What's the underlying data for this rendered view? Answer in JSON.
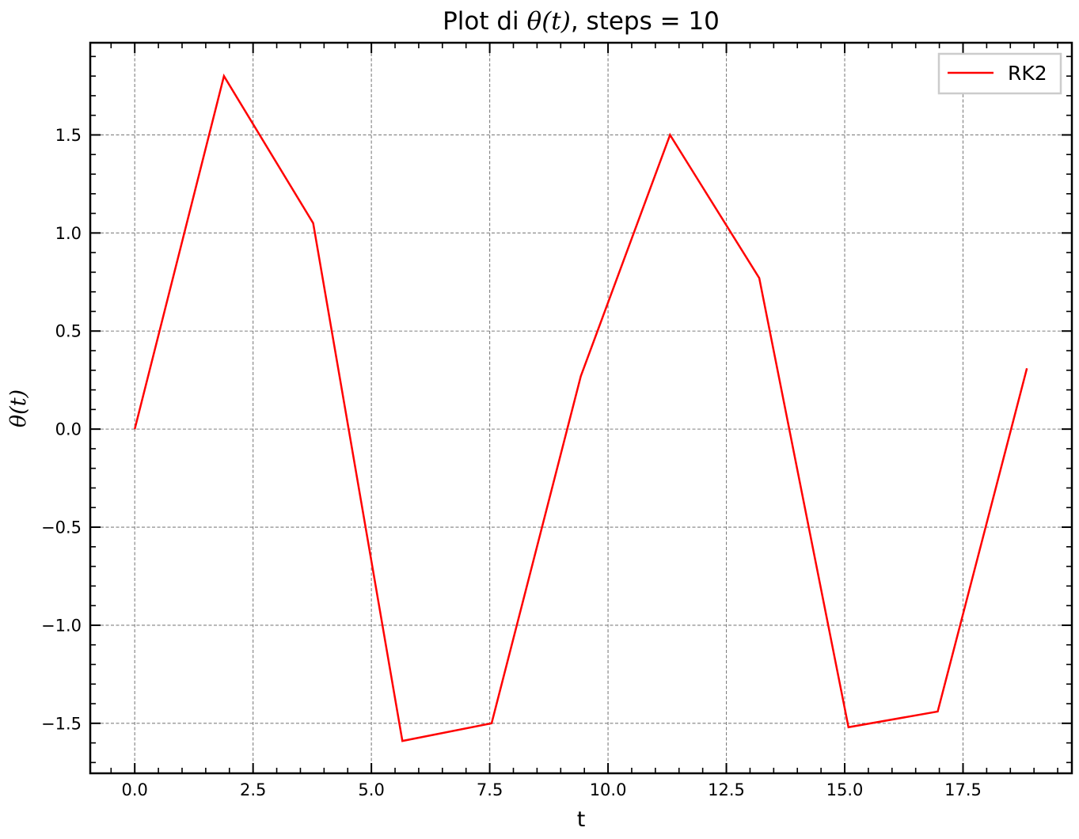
{
  "chart_data": {
    "type": "line",
    "title": {
      "prefix": "Plot di ",
      "symbol": "θ(t)",
      "suffix": ", steps = 10"
    },
    "xlabel": "t",
    "ylabel": "θ(t)",
    "xlim": [
      -0.94,
      19.8
    ],
    "ylim": [
      -1.755,
      1.97
    ],
    "xticks": [
      0.0,
      2.5,
      5.0,
      7.5,
      10.0,
      12.5,
      15.0,
      17.5
    ],
    "xtick_labels": [
      "0.0",
      "2.5",
      "5.0",
      "7.5",
      "10.0",
      "12.5",
      "15.0",
      "17.5"
    ],
    "yticks": [
      -1.5,
      -1.0,
      -0.5,
      0.0,
      0.5,
      1.0,
      1.5
    ],
    "ytick_labels": [
      "−1.5",
      "−1.0",
      "−0.5",
      "0.0",
      "0.5",
      "1.0",
      "1.5"
    ],
    "grid": true,
    "legend_position": "top-right",
    "series": [
      {
        "name": "RK2",
        "color": "#ff0000",
        "x": [
          0.0,
          1.885,
          3.77,
          5.655,
          7.54,
          9.425,
          11.31,
          13.195,
          15.08,
          16.965,
          18.85
        ],
        "y": [
          0.0,
          1.8,
          1.05,
          -1.59,
          -1.5,
          0.27,
          1.5,
          0.77,
          -1.52,
          -1.44,
          0.31
        ]
      }
    ]
  }
}
